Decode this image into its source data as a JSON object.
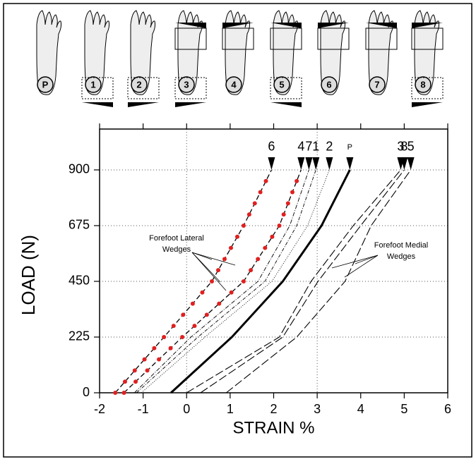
{
  "figure": {
    "foot_labels": [
      "P",
      "1",
      "2",
      "3",
      "4",
      "5",
      "6",
      "7",
      "8"
    ]
  },
  "chart_data": {
    "type": "line",
    "x_label": "STRAIN %",
    "y_label": "LOAD (N)",
    "xlim": [
      -2,
      6
    ],
    "xticks": [
      -2,
      -1,
      0,
      1,
      2,
      3,
      4,
      5,
      6
    ],
    "xgrid": [
      0,
      3
    ],
    "ylim": [
      0,
      1065
    ],
    "yticks": [
      0,
      225,
      450,
      675,
      900
    ],
    "grid": true,
    "y": [
      0,
      225,
      450,
      675,
      900
    ],
    "series": [
      {
        "name": "6",
        "color": "#000000",
        "dash": "7 4",
        "dots": "#e02020",
        "width": 1.3,
        "x": [
          -1.64,
          -0.52,
          0.58,
          1.31,
          1.95
        ]
      },
      {
        "name": "4",
        "color": "#000000",
        "dash": "7 4",
        "dots": "#e02020",
        "width": 1.3,
        "x": [
          -1.44,
          -0.1,
          1.31,
          2.13,
          2.63
        ]
      },
      {
        "name": "7",
        "color": "#000000",
        "dash": "6 2 1 2",
        "width": 0.9,
        "x": [
          -1.2,
          0.1,
          1.64,
          2.37,
          2.81
        ]
      },
      {
        "name": "1",
        "color": "#000000",
        "dash": "5 2 1 2",
        "width": 0.9,
        "x": [
          -1.15,
          0.26,
          1.8,
          2.53,
          2.97
        ]
      },
      {
        "name": "2",
        "color": "#000000",
        "dash": "1 2",
        "width": 0.9,
        "x": [
          -1.04,
          0.42,
          1.96,
          2.78,
          3.28
        ]
      },
      {
        "name": "P",
        "color": "#000000",
        "dash": "none",
        "width": 3,
        "x": [
          -0.36,
          1.04,
          2.21,
          3.1,
          3.75
        ]
      },
      {
        "name": "3",
        "color": "#000000",
        "dash": "12 4",
        "width": 1.1,
        "x": [
          0,
          2.13,
          2.86,
          3.83,
          4.92
        ]
      },
      {
        "name": "8",
        "color": "#000000",
        "dash": "12 4",
        "width": 1.1,
        "x": [
          0.32,
          2.21,
          3.02,
          4.0,
          5.0
        ]
      },
      {
        "name": "5",
        "color": "#000000",
        "dash": "12 4",
        "width": 1.1,
        "x": [
          0.91,
          2.53,
          3.64,
          4.24,
          5.15
        ]
      }
    ],
    "annotations": [
      "Forefoot Lateral",
      "Wedges",
      "Forefoot Medial",
      "Wedges"
    ]
  }
}
